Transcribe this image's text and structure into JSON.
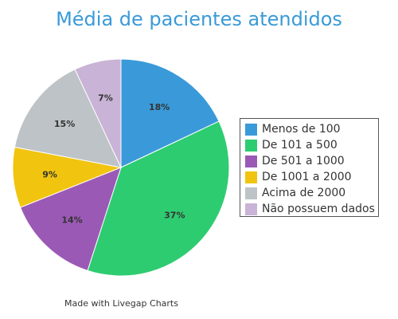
{
  "chart_data": {
    "type": "pie",
    "title": "Média de pacientes atendidos",
    "categories": [
      "Menos de 100",
      "De 101 a 500",
      "De 501 a 1000",
      "De 1001 a 2000",
      "Acima de 2000",
      "Não possuem dados"
    ],
    "values": [
      18,
      37,
      14,
      9,
      15,
      7
    ],
    "labels": [
      "18%",
      "37%",
      "14%",
      "9%",
      "15%",
      "7%"
    ],
    "colors": [
      "#3a9ad9",
      "#2ecc71",
      "#9b59b6",
      "#f1c40f",
      "#bdc3c7",
      "#c9b3d6"
    ],
    "legend_position": "right"
  },
  "footer": {
    "credit": "Made with Livegap Charts"
  }
}
